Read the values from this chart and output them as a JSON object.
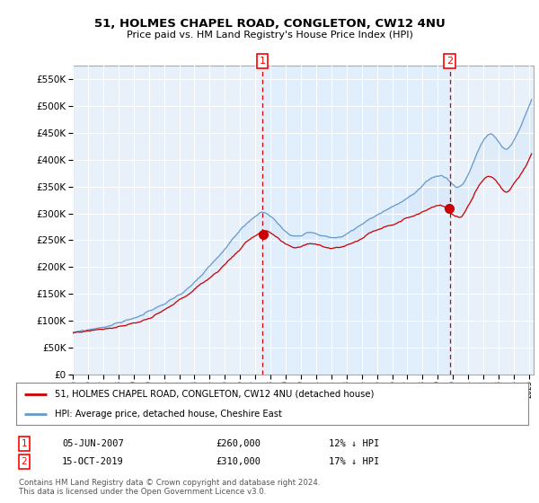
{
  "title": "51, HOLMES CHAPEL ROAD, CONGLETON, CW12 4NU",
  "subtitle": "Price paid vs. HM Land Registry's House Price Index (HPI)",
  "legend_line1": "51, HOLMES CHAPEL ROAD, CONGLETON, CW12 4NU (detached house)",
  "legend_line2": "HPI: Average price, detached house, Cheshire East",
  "marker1_date": 2007.46,
  "marker1_price": 260000,
  "marker1_label": "1",
  "marker1_text": "05-JUN-2007",
  "marker1_price_str": "£260,000",
  "marker1_hpi": "12% ↓ HPI",
  "marker2_date": 2019.79,
  "marker2_price": 310000,
  "marker2_label": "2",
  "marker2_text": "15-OCT-2019",
  "marker2_price_str": "£310,000",
  "marker2_hpi": "17% ↓ HPI",
  "footnote1": "Contains HM Land Registry data © Crown copyright and database right 2024.",
  "footnote2": "This data is licensed under the Open Government Licence v3.0.",
  "ylim_min": 0,
  "ylim_max": 575000,
  "xlim_start": 1995.0,
  "xlim_end": 2025.3,
  "line_color_red": "#cc0000",
  "line_color_blue": "#6699cc",
  "fill_color": "#d0e4f7",
  "fill_alpha": 0.5,
  "shade_color": "#ddeeff",
  "bg_color": "#e8f0fa",
  "grid_color": "white",
  "spine_color": "#aaaaaa"
}
